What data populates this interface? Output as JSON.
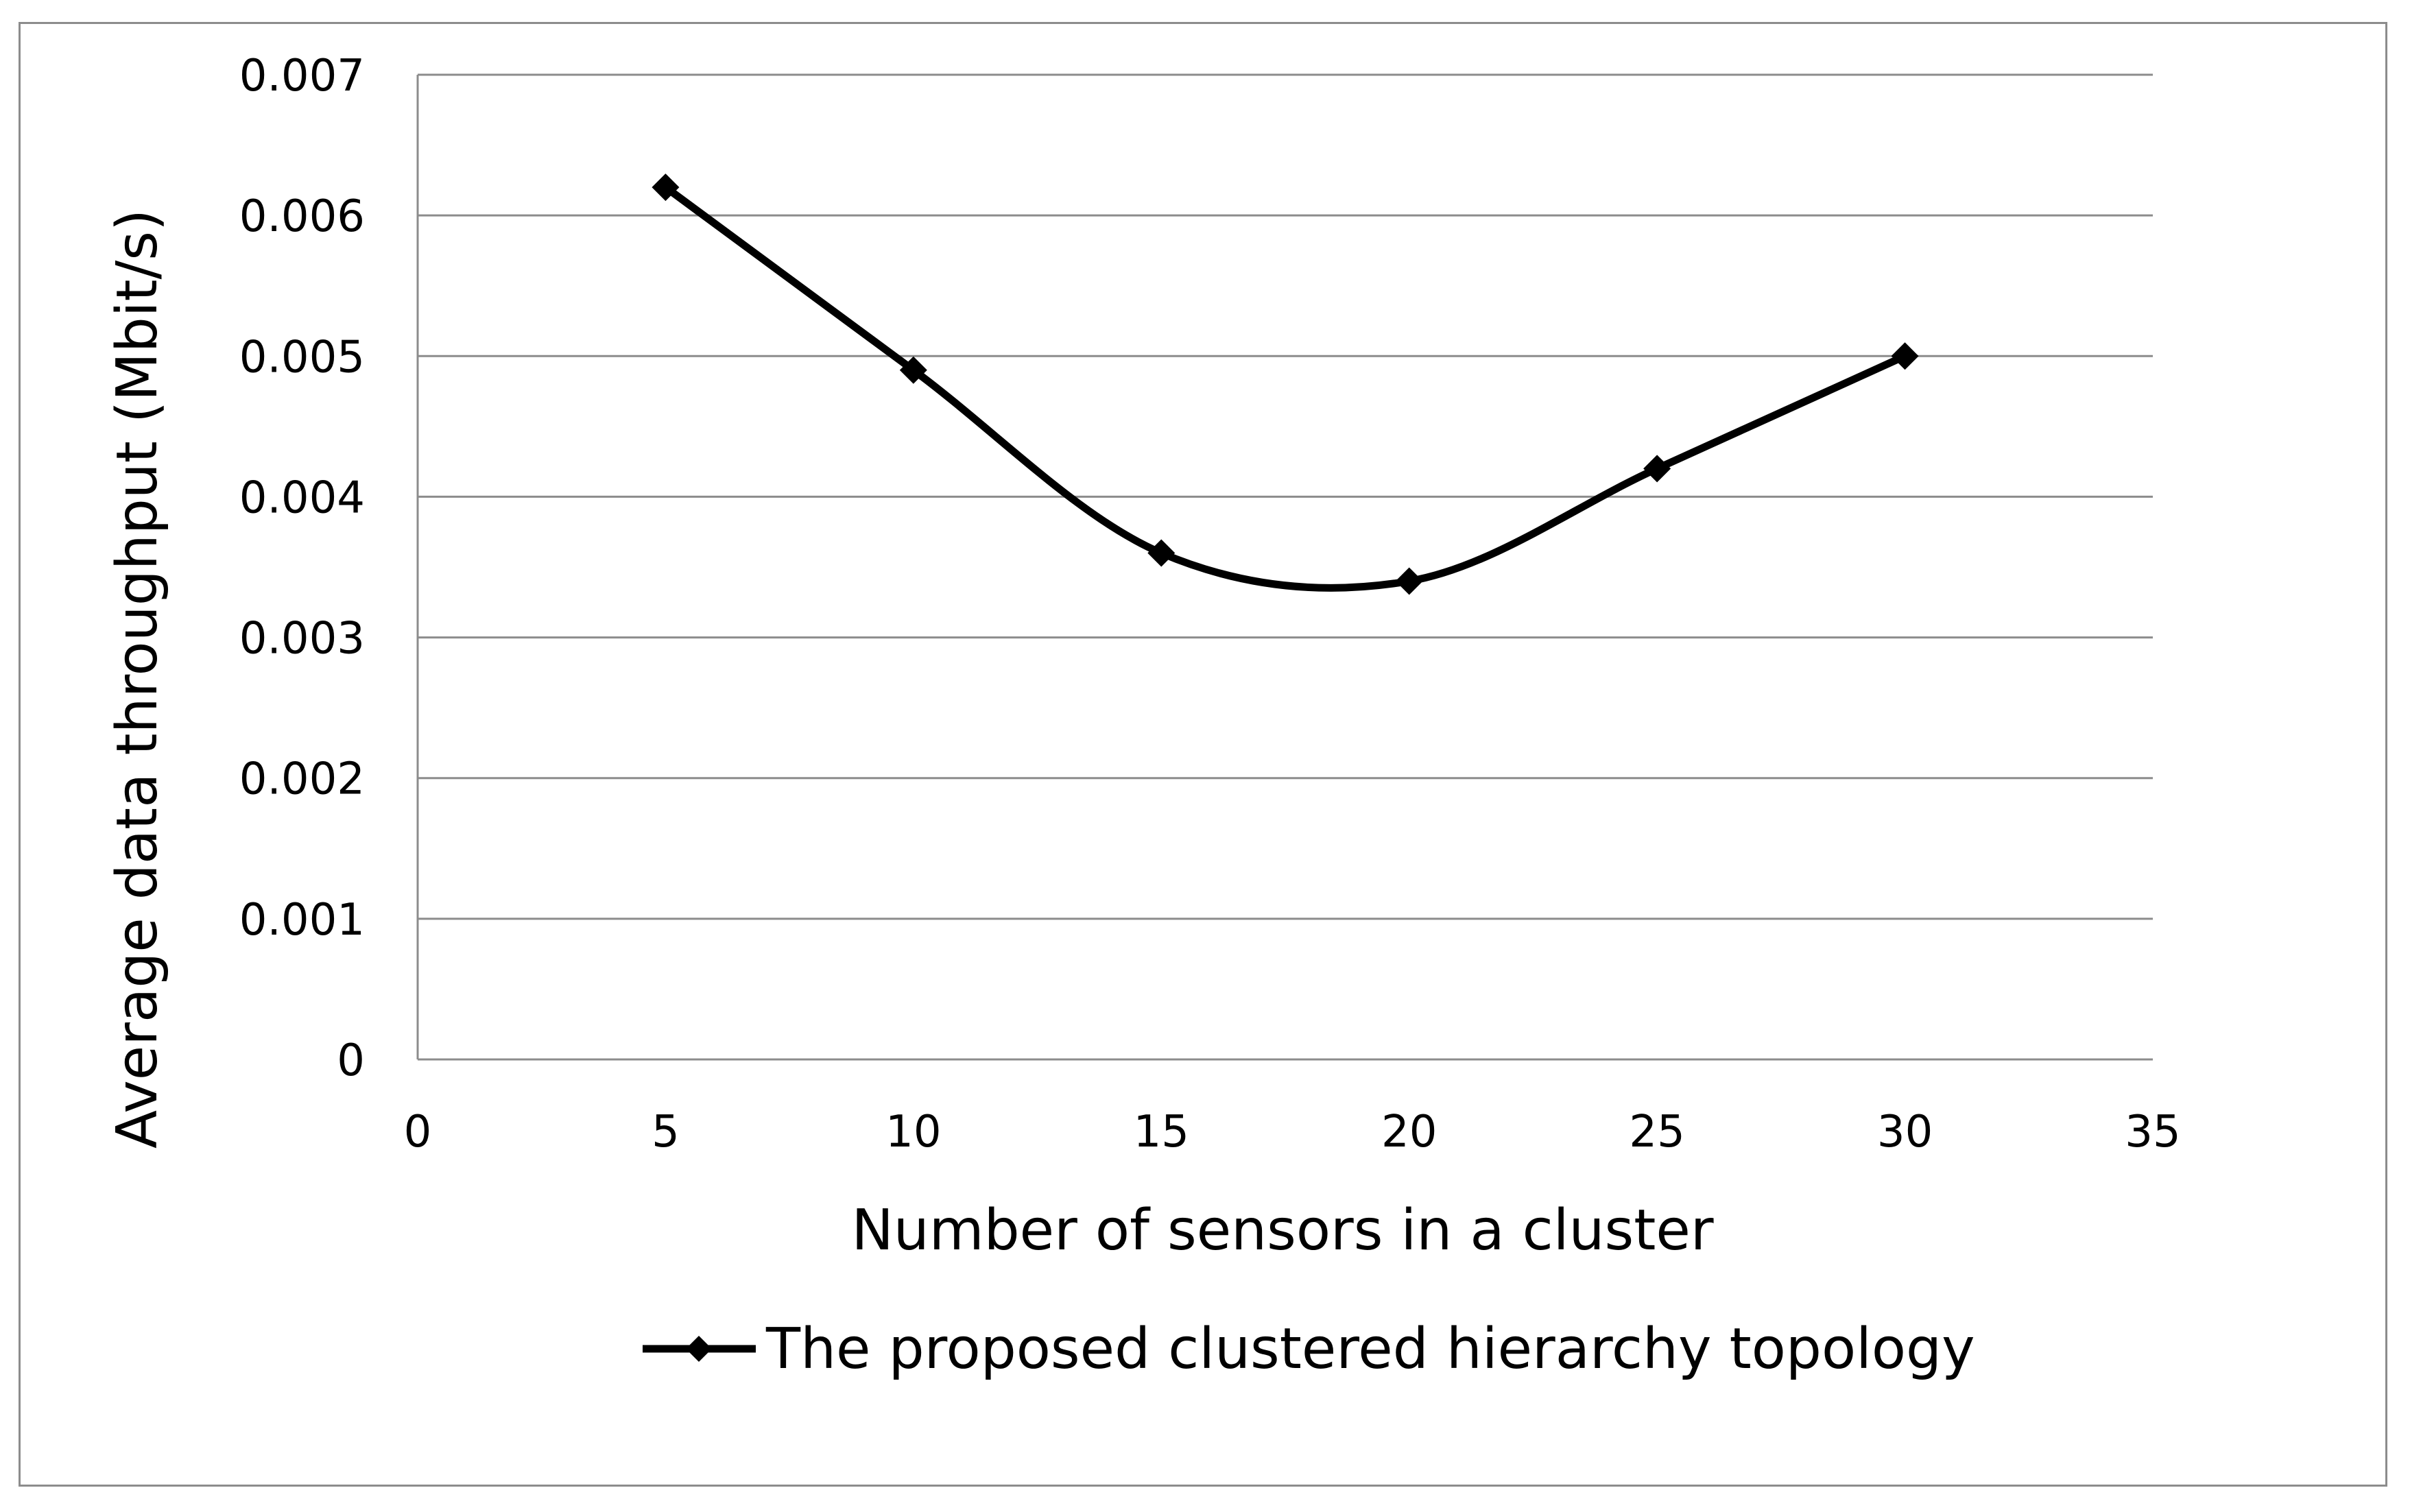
{
  "chart_data": {
    "type": "line",
    "title": "",
    "xlabel": "Number of sensors in a cluster",
    "ylabel": "Average data throughput (Mbit/s)",
    "xlim": [
      0,
      35
    ],
    "ylim": [
      0,
      0.007
    ],
    "x_ticks": [
      "0",
      "5",
      "10",
      "15",
      "20",
      "25",
      "30",
      "35"
    ],
    "y_ticks": [
      "0",
      "0.001",
      "0.002",
      "0.003",
      "0.004",
      "0.005",
      "0.006",
      "0.007"
    ],
    "grid": "horizontal",
    "smoothed": true,
    "marker": "diamond",
    "legend_position": "bottom",
    "series": [
      {
        "name": "The proposed clustered hierarchy topology",
        "color": "#000000",
        "x": [
          5,
          10,
          15,
          20,
          25,
          30
        ],
        "y": [
          0.0062,
          0.0049,
          0.0036,
          0.0034,
          0.0042,
          0.005
        ]
      }
    ]
  }
}
